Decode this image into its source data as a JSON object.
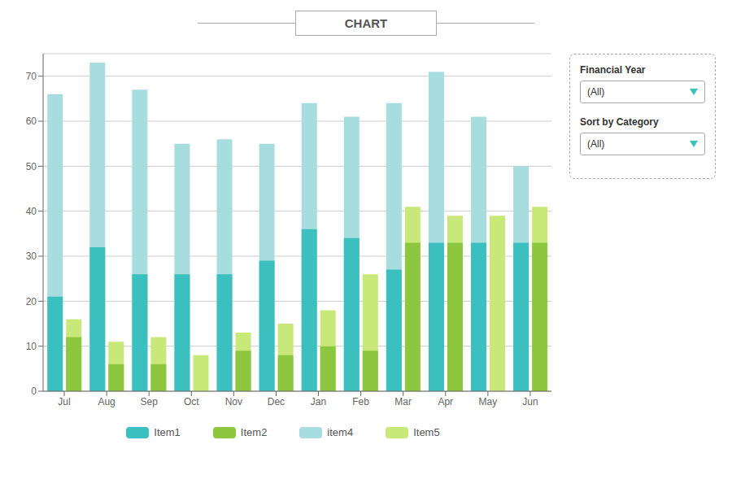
{
  "chart_data": {
    "type": "bar",
    "title": "CHART",
    "categories": [
      "Jul",
      "Aug",
      "Sep",
      "Oct",
      "Nov",
      "Dec",
      "Jan",
      "Feb",
      "Mar",
      "Apr",
      "May",
      "Jun"
    ],
    "series": [
      {
        "name": "Item1",
        "color": "#3bbfbf",
        "values": [
          21,
          32,
          26,
          26,
          26,
          29,
          36,
          34,
          27,
          33,
          33,
          33
        ]
      },
      {
        "name": "Item2",
        "color": "#8dc63f",
        "values": [
          12,
          6,
          6,
          0,
          9,
          8,
          10,
          9,
          33,
          33,
          0,
          33
        ]
      },
      {
        "name": "item4",
        "color": "#a8dde0",
        "values": [
          66,
          73,
          67,
          55,
          56,
          55,
          64,
          61,
          64,
          71,
          61,
          50
        ]
      },
      {
        "name": "Item5",
        "color": "#c8e87a",
        "values": [
          16,
          11,
          12,
          8,
          13,
          15,
          18,
          26,
          41,
          39,
          39,
          41
        ]
      }
    ],
    "ylim": [
      0,
      75
    ],
    "yticks": [
      0,
      10,
      20,
      30,
      40,
      50,
      60,
      70
    ],
    "grid": true,
    "legend": "bottom",
    "annotations": [
      "Financial Year",
      "(All)",
      "Sort by Category",
      "(All)"
    ]
  }
}
